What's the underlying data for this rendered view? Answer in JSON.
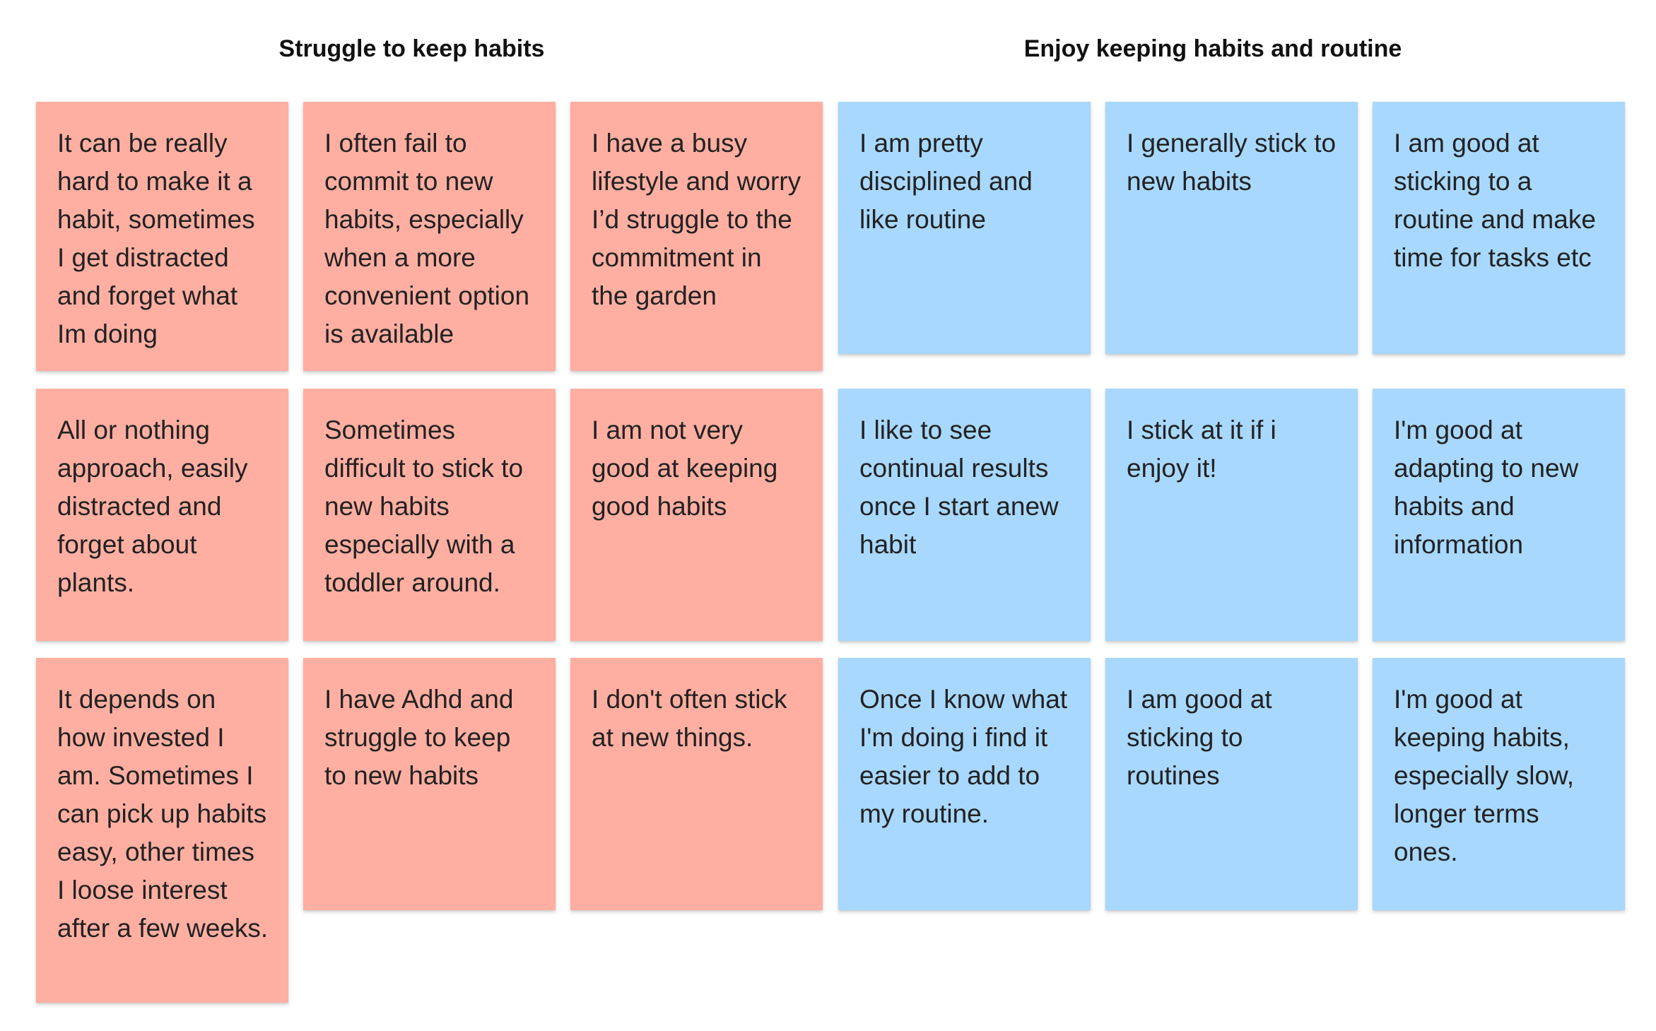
{
  "sections": {
    "struggle": {
      "title": "Struggle to keep habits",
      "color": "#ffafa2"
    },
    "enjoy": {
      "title": "Enjoy keeping habits and routine",
      "color": "#a8d8fd"
    }
  },
  "notes": {
    "struggle": [
      "It can be really hard to make it a habit, sometimes I get distracted and forget what Im doing",
      "I often fail to commit to new habits, especially when a more convenient option is available",
      "I have a busy lifestyle and worry I’d struggle to the commitment in the garden",
      "All or nothing approach, easily distracted and forget about plants.",
      "Sometimes difficult to stick to new habits especially with a toddler around.",
      "I am not very good at keeping good habits",
      "It depends on how invested I am. Sometimes I can pick up habits easy, other times I loose interest after a few weeks.",
      "I have Adhd and struggle to keep to new habits",
      "I don't often stick at new things."
    ],
    "enjoy": [
      "I am pretty disciplined and like routine",
      "I generally stick to new habits",
      "I am good at sticking to a routine and make time for tasks etc",
      "I like to see continual results once I start anew habit",
      "I stick at it if i enjoy it!",
      "I'm good at adapting to new habits and information",
      "Once I know what I'm doing i find it easier to add to my routine.",
      "I am good at sticking to routines",
      "I'm good at keeping habits, especially slow, longer terms ones."
    ]
  }
}
